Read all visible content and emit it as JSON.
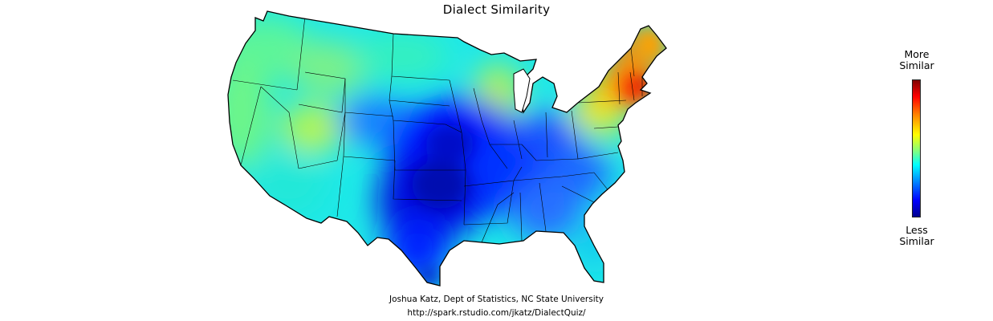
{
  "title": "Dialect Similarity",
  "legend": {
    "top_line1": "More",
    "top_line2": "Similar",
    "bottom_line1": "Less",
    "bottom_line2": "Similar",
    "colors": [
      "#7f0000",
      "#ff0000",
      "#ff8000",
      "#ffff00",
      "#80ff80",
      "#00ffff",
      "#0080ff",
      "#0000ff",
      "#00008f"
    ]
  },
  "credits": {
    "author": "Joshua Katz, Dept of Statistics, NC State University",
    "url": "http://spark.rstudio.com/jkatz/DialectQuiz/"
  },
  "map": {
    "region": "contiguous-united-states",
    "most_similar_region": "new-england",
    "least_similar_region": "south-central"
  }
}
